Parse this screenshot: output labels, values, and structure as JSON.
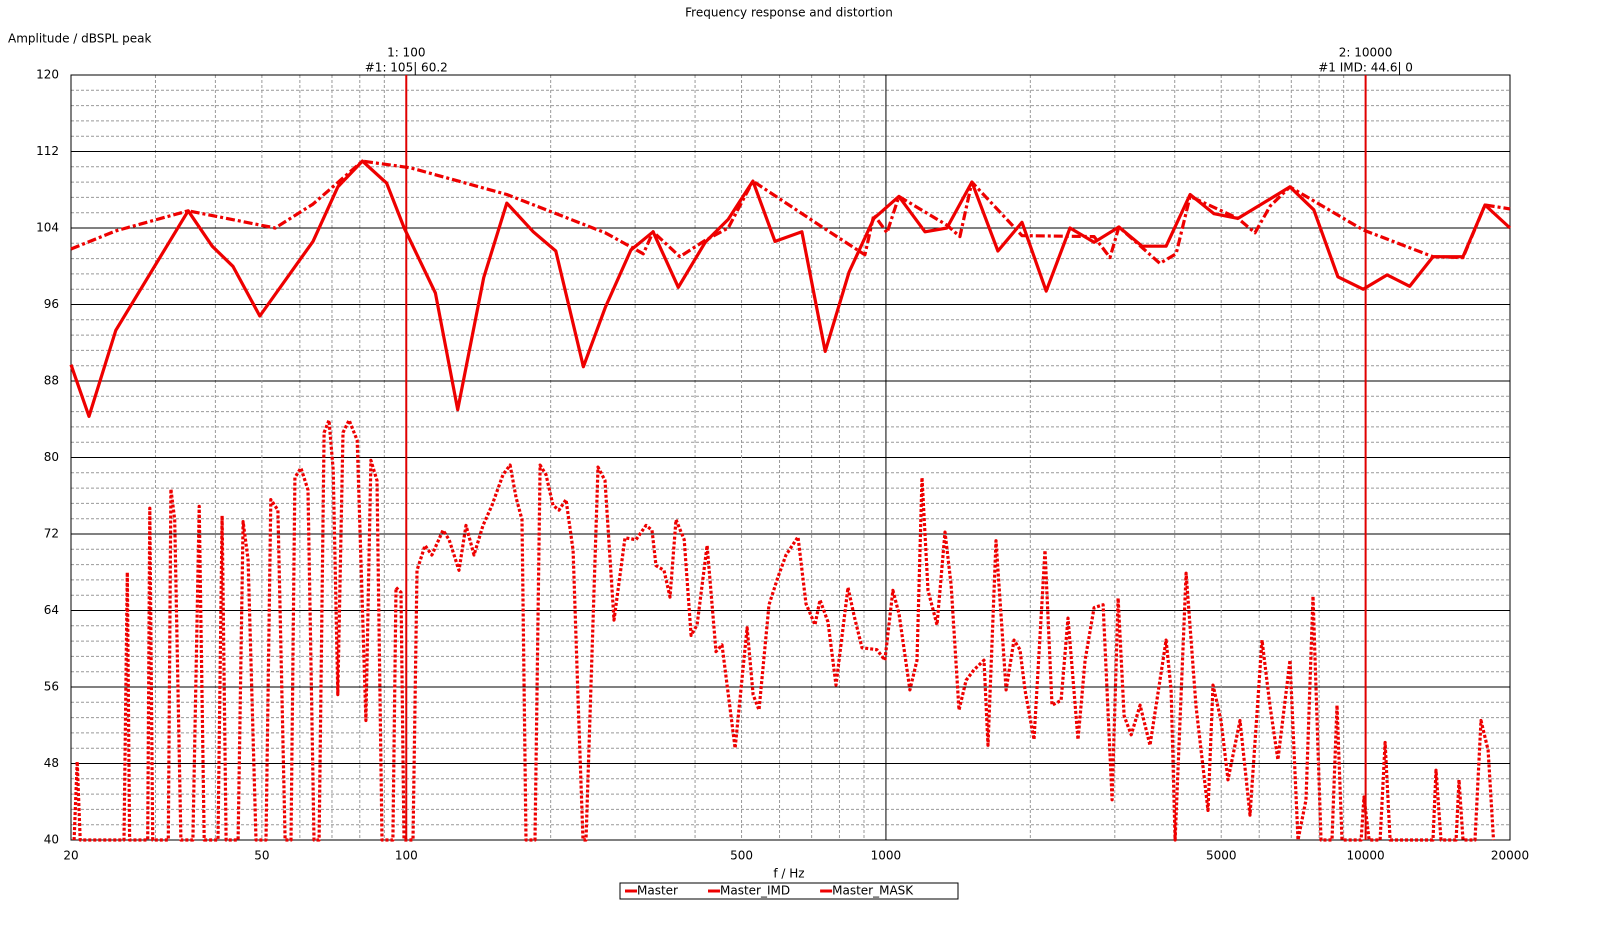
{
  "chart_data": {
    "type": "line",
    "title": "Frequency response and distortion",
    "y_label": "Amplitude / dBSPL peak",
    "x_label": "f / Hz",
    "xscale": "log",
    "xlim": [
      20,
      20000
    ],
    "ylim": [
      40,
      120
    ],
    "xticks": [
      20,
      50,
      100,
      500,
      1000,
      5000,
      10000,
      20000
    ],
    "yticks": [
      40,
      48,
      56,
      64,
      72,
      80,
      88,
      96,
      104,
      112,
      120
    ],
    "xminorticks": [
      30,
      40,
      60,
      70,
      80,
      90,
      200,
      300,
      400,
      600,
      700,
      800,
      900,
      2000,
      3000,
      4000,
      6000,
      7000,
      8000,
      9000
    ],
    "yminorticks": [
      41.6,
      43.2,
      44.8,
      46.4,
      49.6,
      51.2,
      52.8,
      54.4,
      57.6,
      59.2,
      60.8,
      62.4,
      65.6,
      67.2,
      68.8,
      70.4,
      73.6,
      75.2,
      76.8,
      78.4,
      81.6,
      83.2,
      84.8,
      86.4,
      89.6,
      91.2,
      92.8,
      94.4,
      97.6,
      99.2,
      100.8,
      102.4,
      105.6,
      107.2,
      108.8,
      110.4,
      113.6,
      115.2,
      116.8,
      118.4
    ],
    "grid": true,
    "legend": "bottom",
    "cursors": [
      {
        "label": "1:  100",
        "readout": "#1:  105| 60.2",
        "x": 100,
        "color": "#e00000"
      },
      {
        "label": "2:  10000",
        "readout": "#1 IMD:  44.6| 0",
        "x": 10000,
        "color": "#e00000"
      }
    ],
    "series": [
      {
        "name": "Master",
        "color": "#ee0000",
        "style": "solid",
        "x": [
          20,
          21.8,
          24.8,
          35.1,
          39.4,
          43.5,
          49.5,
          63.9,
          72,
          81,
          91,
          99,
          115,
          128,
          145,
          162,
          184,
          205,
          234,
          260,
          294,
          327,
          369,
          420,
          469,
          528,
          587,
          668,
          747,
          838,
          944,
          1064,
          1206,
          1340,
          1511,
          1712,
          1922,
          2158,
          2420,
          2716,
          3060,
          3420,
          3838,
          4306,
          4830,
          5420,
          6952,
          7800,
          8754,
          9880,
          11090,
          12360,
          13820,
          15960,
          17740,
          20000
        ],
        "values": [
          89.7,
          84.3,
          93.3,
          105.8,
          102.1,
          100.0,
          94.8,
          102.6,
          108.3,
          111.0,
          108.7,
          104.0,
          97.2,
          85.0,
          98.8,
          106.6,
          103.6,
          101.6,
          89.5,
          95.7,
          101.7,
          103.6,
          97.8,
          102.5,
          104.9,
          108.9,
          102.6,
          103.6,
          91.1,
          99.4,
          105.0,
          107.3,
          103.6,
          104.0,
          108.8,
          101.6,
          104.6,
          97.4,
          104.0,
          102.5,
          104.1,
          102.1,
          102.1,
          107.5,
          105.5,
          105.0,
          108.3,
          105.9,
          98.9,
          97.6,
          99.1,
          97.9,
          101.0,
          101.0,
          106.4,
          104.0
        ]
      },
      {
        "name": "Master_IMD",
        "color": "#ee0000",
        "style": "dotted",
        "x": [
          20.3,
          20.6,
          20.9,
          25.8,
          26.2,
          26.5,
          28.9,
          29.2,
          29.6,
          31.9,
          32.3,
          32.9,
          33.9,
          35.9,
          37.0,
          37.9,
          40.5,
          41.3,
          42.1,
          44.6,
          45.7,
          46.8,
          48.6,
          51.0,
          52.2,
          54.0,
          55.9,
          57.5,
          58.6,
          60.3,
          62.4,
          64.2,
          65.8,
          67.4,
          69.0,
          70.4,
          72.0,
          73.8,
          76.0,
          79.0,
          82.4,
          84.4,
          86.9,
          89.0,
          93.8,
          95.2,
          97.5,
          98.9,
          103.3,
          105.3,
          109.4,
          113.1,
          119.3,
          122.8,
          128.8,
          133.2,
          138.4,
          144.5,
          150.9,
          159.1,
          164.6,
          169.4,
          174.3,
          177.7,
          185.5,
          190.1,
          195.6,
          202.3,
          208.2,
          215.3,
          222.7,
          228.1,
          233.6,
          237.0,
          251,
          259.6,
          271,
          285.8,
          301.3,
          316.1,
          325.3,
          331.6,
          344.6,
          354.7,
          365,
          379.6,
          392.5,
          403.9,
          423.7,
          442.4,
          455.3,
          484.7,
          513.4,
          528.4,
          543.8,
          570.5,
          595.7,
          619.0,
          655.6,
          681.3,
          711.4,
          728.7,
          757.3,
          786.9,
          833.6,
          857.9,
          891.5,
          957.5,
          995,
          1034,
          1065,
          1122,
          1161,
          1189,
          1224,
          1278,
          1328,
          1367,
          1420,
          1469,
          1526,
          1601,
          1632,
          1696,
          1729,
          1780,
          1849,
          1903,
          1949,
          2036,
          2146,
          2219,
          2318,
          2396,
          2514,
          2601,
          2716,
          2836,
          2962,
          3048,
          3137,
          3245,
          3388,
          3553,
          3838,
          3931,
          4007,
          4224,
          4431,
          4693,
          4807,
          4995,
          5166,
          5472,
          5741,
          6081,
          6317,
          6565,
          6955,
          7228,
          7511,
          7768,
          8071,
          8512,
          8718,
          8930,
          9784,
          9925,
          10170,
          10720,
          10980,
          11250,
          13820,
          14020,
          14360,
          15440,
          15660,
          15960,
          16910,
          17400,
          18000,
          18480
        ],
        "values": [
          40,
          48.2,
          40,
          40,
          68.0,
          40,
          40,
          74.7,
          40,
          40,
          76.7,
          73.5,
          40,
          40,
          74.9,
          40,
          40,
          73.9,
          40,
          40,
          73.3,
          69.3,
          40,
          40,
          75.6,
          74.5,
          40,
          40,
          77.9,
          78.9,
          76.6,
          40,
          40,
          82.6,
          83.9,
          78.7,
          55.2,
          82.6,
          83.9,
          81.8,
          52.5,
          79.7,
          77.6,
          40,
          40,
          66.4,
          65.9,
          40,
          40,
          68.2,
          70.8,
          69.8,
          72.4,
          71.4,
          68.2,
          72.9,
          69.8,
          72.9,
          75.0,
          78.2,
          79.2,
          75.8,
          73.5,
          40,
          40,
          79.2,
          78.2,
          75.0,
          74.5,
          75.6,
          70.3,
          54.6,
          40,
          40,
          79.0,
          77.6,
          63.0,
          71.6,
          71.4,
          72.9,
          72.4,
          68.7,
          68.2,
          65.4,
          73.5,
          71.4,
          61.4,
          62.5,
          70.8,
          59.7,
          60.4,
          49.6,
          62.2,
          55.2,
          53.6,
          64.6,
          67.5,
          69.8,
          71.7,
          64.7,
          62.5,
          65.1,
          62.8,
          56.2,
          66.4,
          63.5,
          60.1,
          59.9,
          58.8,
          66.1,
          63.6,
          55.7,
          58.8,
          77.9,
          66.1,
          62.5,
          72.2,
          66.7,
          53.6,
          56.7,
          57.8,
          58.8,
          49.9,
          71.3,
          65.1,
          55.7,
          60.9,
          59.9,
          55.7,
          50.5,
          70.3,
          54.1,
          54.6,
          63.2,
          50.5,
          58.8,
          64.3,
          64.6,
          44.2,
          65.3,
          53.0,
          51.0,
          54.1,
          49.9,
          60.9,
          55.7,
          40,
          67.9,
          54.0,
          43.1,
          56.2,
          52.5,
          46.3,
          52.5,
          42.6,
          60.9,
          54.1,
          48.4,
          58.8,
          40,
          44.2,
          65.5,
          40,
          40,
          54.1,
          40,
          40,
          44.5,
          40,
          40,
          50.2,
          40,
          40,
          47.3,
          40,
          40,
          46.3,
          40,
          40,
          52.5,
          49.4,
          40
        ]
      },
      {
        "name": "Master_MASK",
        "color": "#ee0000",
        "style": "dashdot",
        "x": [
          20,
          24.8,
          35.1,
          53.3,
          63.9,
          81,
          102,
          162,
          260,
          312,
          327,
          372,
          420,
          469,
          528,
          747,
          904,
          944,
          1005,
          1064,
          1340,
          1426,
          1511,
          1922,
          2716,
          2932,
          3060,
          3725,
          4027,
          4306,
          5420,
          5880,
          6325,
          6952,
          9880,
          13820,
          15960,
          17740,
          20000
        ],
        "values": [
          101.8,
          103.7,
          105.8,
          104.0,
          106.5,
          111.0,
          110.3,
          107.5,
          103.5,
          101.3,
          103.6,
          101.0,
          102.7,
          104.0,
          108.9,
          103.9,
          101.2,
          105.4,
          103.5,
          107.3,
          104.3,
          103.1,
          108.8,
          103.2,
          103.1,
          100.9,
          104.1,
          100.3,
          101.3,
          107.3,
          105.0,
          103.5,
          106.3,
          108.3,
          103.8,
          101.0,
          100.9,
          106.4,
          106.0
        ]
      }
    ]
  }
}
